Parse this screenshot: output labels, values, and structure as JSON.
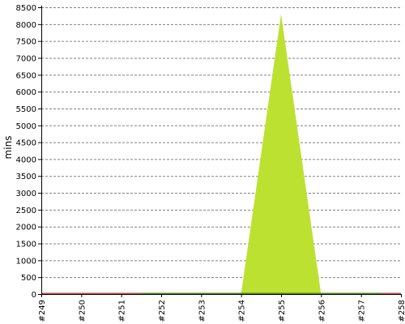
{
  "chart_data": {
    "type": "area",
    "title": "",
    "xlabel": "",
    "ylabel": "mins",
    "categories": [
      "#249",
      "#250",
      "#251",
      "#252",
      "#253",
      "#254",
      "#255",
      "#256",
      "#257",
      "#258"
    ],
    "ylim": [
      0,
      8500
    ],
    "yticks": [
      0,
      500,
      1000,
      1500,
      2000,
      2500,
      3000,
      3500,
      4000,
      4500,
      5000,
      5500,
      6000,
      6500,
      7000,
      7500,
      8000,
      8500
    ],
    "grid": true,
    "series": [
      {
        "values": [
          30,
          30,
          30,
          0,
          0,
          0,
          8300,
          0,
          0,
          30
        ],
        "color": "#bde130"
      }
    ],
    "status_colors": [
      "#c0504d",
      "#bde130",
      "#c0504d",
      "#bde130",
      "#bde130",
      "#bde130",
      "#bde130",
      "#bde130",
      "#bde130",
      "#c0504d"
    ],
    "status_ranges": [
      [
        0,
        2.5,
        "#c0504d"
      ],
      [
        2.5,
        8.5,
        "#4f8a1f"
      ],
      [
        8.5,
        9,
        "#c0504d"
      ]
    ]
  }
}
